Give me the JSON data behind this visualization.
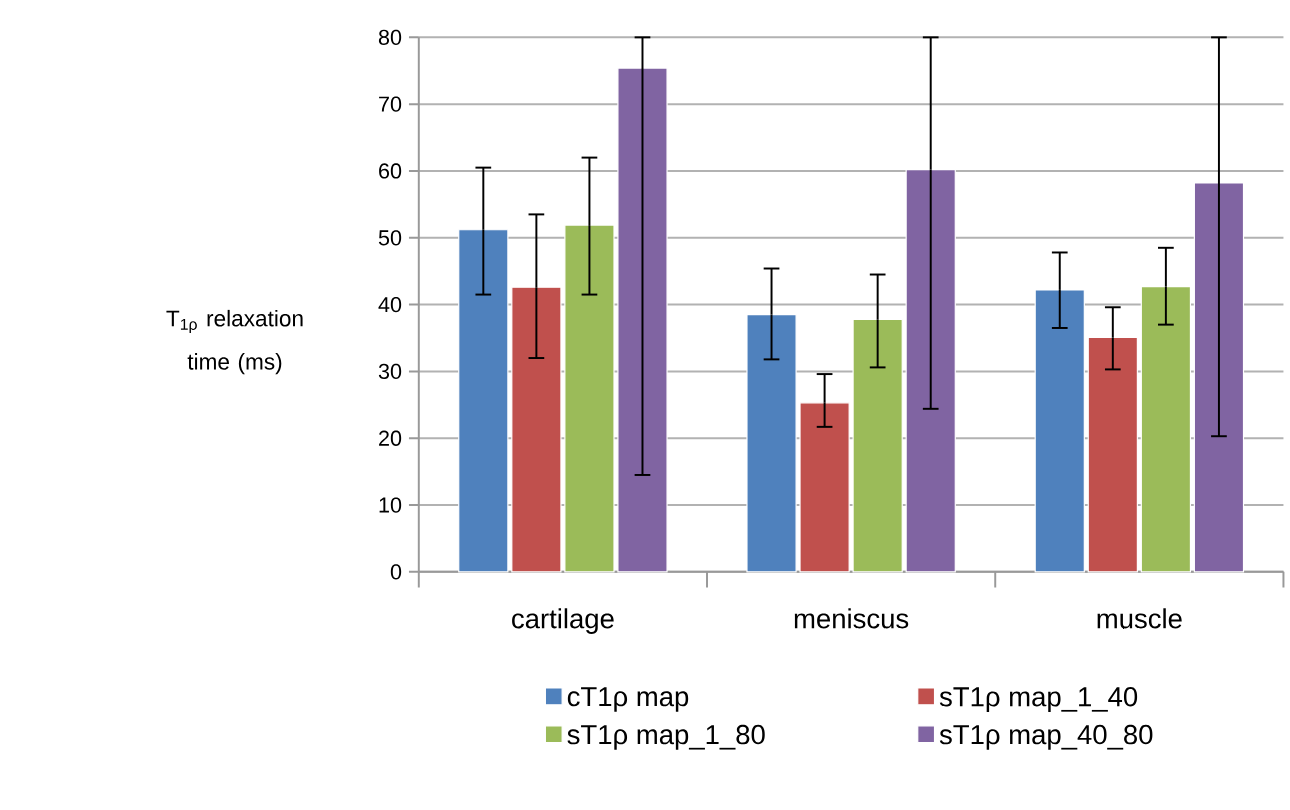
{
  "chart_data": {
    "type": "bar",
    "ylabel": "T$_{1ρ}$ relaxation time (ms)",
    "categories": [
      "cartilage",
      "meniscus",
      "muscle"
    ],
    "series": [
      {
        "name": "cT1ρ map",
        "color": "#4f81bd",
        "values": [
          51.2,
          38.5,
          42.2
        ],
        "errors": [
          [
            41.5,
            60.5
          ],
          [
            31.8,
            45.4
          ],
          [
            36.5,
            47.8
          ]
        ]
      },
      {
        "name": "sT1ρ map_1_40",
        "color": "#c0504d",
        "values": [
          42.6,
          25.3,
          35.1
        ],
        "errors": [
          [
            32,
            53.5
          ],
          [
            21.7,
            29.6
          ],
          [
            30.3,
            39.6
          ]
        ]
      },
      {
        "name": "sT1ρ map_1_80",
        "color": "#9bbb59",
        "values": [
          51.9,
          37.8,
          42.7
        ],
        "errors": [
          [
            41.5,
            62
          ],
          [
            30.6,
            44.5
          ],
          [
            37,
            48.5
          ]
        ]
      },
      {
        "name": "sT1ρ map_40_80",
        "color": "#8064a2",
        "values": [
          75.4,
          60.2,
          58.2
        ],
        "errors": [
          [
            14.5,
            80
          ],
          [
            24.4,
            80
          ],
          [
            20.3,
            80
          ]
        ]
      }
    ],
    "ylim": [
      0,
      80
    ],
    "yticks": [
      0,
      10,
      20,
      30,
      40,
      50,
      60,
      70,
      80
    ],
    "grid": "y",
    "legend": "bottom"
  }
}
